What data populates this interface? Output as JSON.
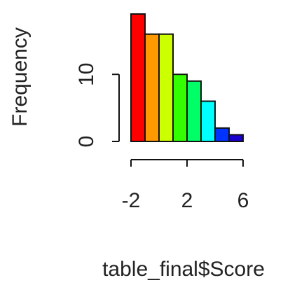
{
  "chart_data": {
    "type": "histogram",
    "xlabel": "table_final$Score",
    "ylabel": "Frequency",
    "bins": [
      -2,
      -1,
      0,
      1,
      2,
      3,
      4,
      5,
      6
    ],
    "values": [
      19,
      16,
      16,
      10,
      9,
      6,
      2,
      1
    ],
    "colors": [
      "#ff0000",
      "#ff9900",
      "#ccff00",
      "#33ff00",
      "#00ff66",
      "#00ffff",
      "#0033ff",
      "#1a00cc"
    ],
    "xlim": [
      -2,
      6
    ],
    "ylim": [
      0,
      19
    ],
    "xticks": [
      -2,
      2,
      6
    ],
    "yticks": [
      0,
      10
    ]
  }
}
